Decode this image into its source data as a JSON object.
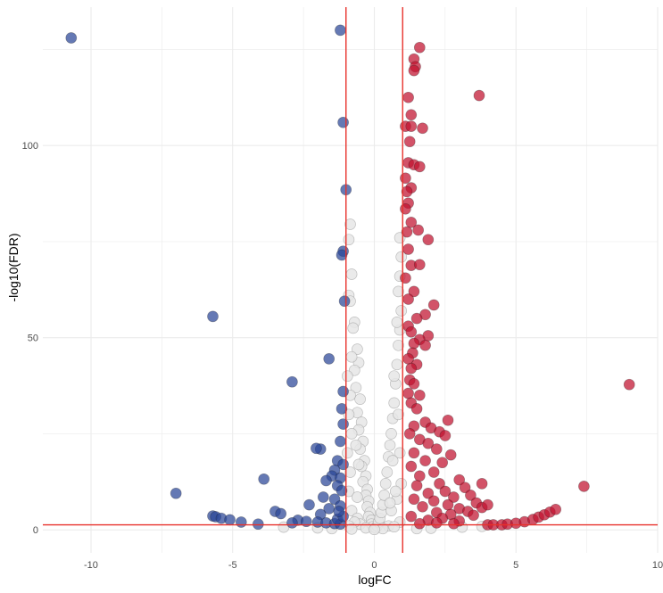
{
  "chart_data": {
    "type": "scatter",
    "title": "",
    "xlabel": "logFC",
    "ylabel": "-log10(FDR)",
    "xlim": [
      -11.7,
      10.0
    ],
    "ylim": [
      -6.0,
      136.0
    ],
    "x_ticks": [
      -10,
      -5,
      0,
      5,
      10
    ],
    "x_tick_labels": [
      "-10",
      "-5",
      "0",
      "5",
      "10"
    ],
    "y_ticks": [
      0,
      50,
      100
    ],
    "y_tick_labels": [
      "0",
      "50",
      "100"
    ],
    "grid": true,
    "legend": "none",
    "thresholds": {
      "logFC": [
        -1,
        1
      ],
      "neg_log10_FDR": 1.3
    },
    "colors": {
      "down": "#2a4597",
      "up": "#c0112e",
      "not_significant": "#e6e6e6",
      "threshold_line": "#e8312b",
      "grid": "#ebebeb"
    },
    "series": [
      {
        "name": "down",
        "points": [
          [
            -10.7,
            128.0
          ],
          [
            -1.2,
            130.0
          ],
          [
            -1.1,
            106.0
          ],
          [
            -1.0,
            88.5
          ],
          [
            -1.1,
            72.5
          ],
          [
            -1.15,
            71.5
          ],
          [
            -1.05,
            59.5
          ],
          [
            -5.7,
            55.5
          ],
          [
            -1.6,
            44.5
          ],
          [
            -2.9,
            38.5
          ],
          [
            -1.1,
            36.0
          ],
          [
            -1.15,
            31.5
          ],
          [
            -1.1,
            27.5
          ],
          [
            -1.2,
            23.0
          ],
          [
            -1.9,
            21.0
          ],
          [
            -2.05,
            21.2
          ],
          [
            -1.3,
            18.0
          ],
          [
            -1.1,
            17.0
          ],
          [
            -1.4,
            15.5
          ],
          [
            -1.5,
            14.0
          ],
          [
            -1.2,
            13.5
          ],
          [
            -3.9,
            13.2
          ],
          [
            -1.7,
            12.8
          ],
          [
            -1.3,
            11.5
          ],
          [
            -1.15,
            10.2
          ],
          [
            -7.0,
            9.5
          ],
          [
            -1.8,
            8.5
          ],
          [
            -1.4,
            8.0
          ],
          [
            -2.3,
            6.5
          ],
          [
            -1.2,
            6.2
          ],
          [
            -1.6,
            5.5
          ],
          [
            -3.5,
            4.8
          ],
          [
            -3.3,
            4.2
          ],
          [
            -1.9,
            4.0
          ],
          [
            -5.7,
            3.6
          ],
          [
            -5.6,
            3.4
          ],
          [
            -5.4,
            3.0
          ],
          [
            -5.1,
            2.6
          ],
          [
            -4.7,
            2.0
          ],
          [
            -4.1,
            1.5
          ],
          [
            -2.7,
            2.5
          ],
          [
            -2.4,
            2.2
          ],
          [
            -2.0,
            2.0
          ],
          [
            -1.7,
            1.8
          ],
          [
            -1.4,
            1.6
          ],
          [
            -1.2,
            1.5
          ],
          [
            -2.9,
            1.8
          ],
          [
            -1.3,
            2.8
          ],
          [
            -1.1,
            3.5
          ],
          [
            -1.25,
            4.8
          ]
        ]
      },
      {
        "name": "up",
        "points": [
          [
            1.6,
            125.5
          ],
          [
            1.4,
            122.5
          ],
          [
            1.45,
            120.5
          ],
          [
            1.4,
            119.5
          ],
          [
            3.7,
            113.0
          ],
          [
            1.2,
            112.5
          ],
          [
            1.3,
            108.0
          ],
          [
            1.1,
            105.0
          ],
          [
            1.3,
            105.0
          ],
          [
            1.7,
            104.5
          ],
          [
            1.25,
            101.0
          ],
          [
            1.2,
            95.5
          ],
          [
            1.4,
            95.0
          ],
          [
            1.6,
            94.5
          ],
          [
            1.1,
            91.5
          ],
          [
            1.3,
            89.0
          ],
          [
            1.15,
            88.0
          ],
          [
            1.2,
            85.0
          ],
          [
            1.1,
            83.5
          ],
          [
            1.3,
            80.0
          ],
          [
            1.55,
            78.0
          ],
          [
            1.15,
            77.5
          ],
          [
            1.9,
            75.5
          ],
          [
            1.2,
            73.0
          ],
          [
            1.3,
            68.8
          ],
          [
            1.6,
            69.0
          ],
          [
            1.1,
            65.5
          ],
          [
            1.4,
            62.0
          ],
          [
            1.2,
            60.0
          ],
          [
            2.1,
            58.5
          ],
          [
            1.8,
            56.0
          ],
          [
            1.5,
            55.0
          ],
          [
            1.2,
            53.0
          ],
          [
            1.3,
            51.5
          ],
          [
            1.9,
            50.5
          ],
          [
            1.6,
            49.5
          ],
          [
            1.4,
            48.5
          ],
          [
            1.8,
            48.0
          ],
          [
            1.35,
            46.0
          ],
          [
            1.2,
            44.5
          ],
          [
            1.5,
            43.0
          ],
          [
            1.3,
            42.0
          ],
          [
            9.0,
            37.8
          ],
          [
            1.25,
            39.0
          ],
          [
            1.4,
            38.0
          ],
          [
            1.2,
            35.5
          ],
          [
            1.6,
            35.0
          ],
          [
            1.3,
            33.0
          ],
          [
            1.5,
            31.5
          ],
          [
            2.6,
            28.5
          ],
          [
            1.8,
            28.0
          ],
          [
            1.4,
            27.0
          ],
          [
            2.0,
            26.5
          ],
          [
            2.3,
            25.5
          ],
          [
            1.25,
            25.0
          ],
          [
            2.5,
            24.5
          ],
          [
            1.6,
            23.5
          ],
          [
            1.9,
            22.5
          ],
          [
            2.2,
            21.0
          ],
          [
            1.4,
            20.0
          ],
          [
            2.7,
            19.5
          ],
          [
            1.8,
            18.0
          ],
          [
            2.4,
            17.5
          ],
          [
            1.3,
            16.5
          ],
          [
            2.1,
            15.0
          ],
          [
            1.6,
            14.0
          ],
          [
            3.0,
            13.0
          ],
          [
            2.3,
            12.0
          ],
          [
            3.8,
            12.0
          ],
          [
            1.5,
            11.5
          ],
          [
            3.2,
            11.0
          ],
          [
            7.4,
            11.3
          ],
          [
            2.5,
            10.0
          ],
          [
            1.9,
            9.5
          ],
          [
            3.4,
            9.0
          ],
          [
            2.8,
            8.5
          ],
          [
            1.4,
            8.0
          ],
          [
            2.1,
            7.5
          ],
          [
            3.6,
            7.0
          ],
          [
            2.6,
            6.5
          ],
          [
            1.7,
            6.0
          ],
          [
            3.0,
            5.5
          ],
          [
            3.3,
            4.8
          ],
          [
            2.2,
            4.5
          ],
          [
            2.7,
            4.0
          ],
          [
            3.5,
            3.8
          ],
          [
            1.3,
            3.5
          ],
          [
            2.4,
            3.0
          ],
          [
            1.9,
            2.5
          ],
          [
            3.0,
            2.3
          ],
          [
            2.2,
            1.8
          ],
          [
            1.6,
            1.6
          ],
          [
            4.0,
            1.3
          ],
          [
            4.2,
            1.3
          ],
          [
            4.5,
            1.3
          ],
          [
            4.7,
            1.5
          ],
          [
            5.0,
            1.7
          ],
          [
            5.3,
            2.1
          ],
          [
            5.6,
            2.7
          ],
          [
            5.8,
            3.3
          ],
          [
            6.0,
            3.9
          ],
          [
            6.2,
            4.6
          ],
          [
            6.4,
            5.3
          ],
          [
            2.8,
            1.6
          ],
          [
            3.8,
            5.8
          ],
          [
            4.0,
            6.5
          ]
        ]
      },
      {
        "name": "not significant",
        "points": [
          [
            -0.85,
            79.5
          ],
          [
            -0.9,
            75.5
          ],
          [
            -0.8,
            66.5
          ],
          [
            -0.9,
            61.0
          ],
          [
            -0.85,
            59.5
          ],
          [
            -0.7,
            54.0
          ],
          [
            -0.75,
            52.5
          ],
          [
            -0.6,
            47.0
          ],
          [
            -0.55,
            43.5
          ],
          [
            -0.7,
            41.5
          ],
          [
            -0.65,
            37.0
          ],
          [
            -0.5,
            34.0
          ],
          [
            -0.6,
            30.5
          ],
          [
            -0.45,
            28.0
          ],
          [
            -0.55,
            26.0
          ],
          [
            -0.4,
            23.0
          ],
          [
            -0.5,
            21.0
          ],
          [
            -0.35,
            18.0
          ],
          [
            -0.45,
            16.5
          ],
          [
            -0.3,
            14.0
          ],
          [
            -0.4,
            12.5
          ],
          [
            -0.25,
            10.5
          ],
          [
            -0.3,
            9.0
          ],
          [
            -0.2,
            7.5
          ],
          [
            -0.25,
            6.0
          ],
          [
            -0.15,
            4.5
          ],
          [
            -0.2,
            3.5
          ],
          [
            -0.1,
            2.5
          ],
          [
            -0.1,
            1.5
          ],
          [
            -0.05,
            0.8
          ],
          [
            -0.8,
            45.0
          ],
          [
            -0.95,
            40.0
          ],
          [
            -0.85,
            35.0
          ],
          [
            -0.9,
            30.0
          ],
          [
            -0.8,
            25.0
          ],
          [
            -0.95,
            20.0
          ],
          [
            -0.85,
            15.0
          ],
          [
            -0.9,
            10.0
          ],
          [
            -0.8,
            5.0
          ],
          [
            -0.6,
            3.0
          ],
          [
            -0.5,
            1.5
          ],
          [
            -0.7,
            2.0
          ],
          [
            -0.9,
            1.0
          ],
          [
            -0.3,
            0.5
          ],
          [
            0.05,
            0.5
          ],
          [
            0.1,
            1.0
          ],
          [
            0.15,
            2.0
          ],
          [
            0.2,
            3.0
          ],
          [
            0.25,
            4.5
          ],
          [
            0.3,
            6.5
          ],
          [
            0.35,
            9.0
          ],
          [
            0.4,
            12.0
          ],
          [
            0.45,
            15.0
          ],
          [
            0.5,
            19.0
          ],
          [
            0.55,
            22.0
          ],
          [
            0.6,
            25.0
          ],
          [
            0.65,
            29.0
          ],
          [
            0.7,
            33.0
          ],
          [
            0.75,
            38.0
          ],
          [
            0.8,
            43.0
          ],
          [
            0.85,
            48.0
          ],
          [
            0.9,
            52.0
          ],
          [
            0.95,
            57.0
          ],
          [
            0.85,
            62.0
          ],
          [
            0.9,
            66.0
          ],
          [
            0.95,
            71.0
          ],
          [
            0.9,
            76.0
          ],
          [
            0.8,
            54.0
          ],
          [
            0.7,
            40.0
          ],
          [
            0.85,
            30.0
          ],
          [
            0.9,
            20.0
          ],
          [
            0.95,
            12.0
          ],
          [
            0.8,
            8.0
          ],
          [
            0.6,
            5.0
          ],
          [
            0.9,
            2.0
          ],
          [
            0.5,
            1.0
          ],
          [
            0.7,
            0.8
          ],
          [
            0.3,
            0.3
          ],
          [
            -3.2,
            0.7
          ],
          [
            -2.0,
            0.5
          ],
          [
            -1.5,
            0.3
          ],
          [
            -0.8,
            0.2
          ],
          [
            0.0,
            0.1
          ],
          [
            1.5,
            0.3
          ],
          [
            2.0,
            0.4
          ],
          [
            3.1,
            0.7
          ],
          [
            3.8,
            0.9
          ],
          [
            -0.6,
            8.5
          ],
          [
            -0.55,
            17.0
          ],
          [
            -0.65,
            22.0
          ],
          [
            0.65,
            18.0
          ],
          [
            0.75,
            10.0
          ],
          [
            0.55,
            7.0
          ]
        ]
      }
    ]
  }
}
